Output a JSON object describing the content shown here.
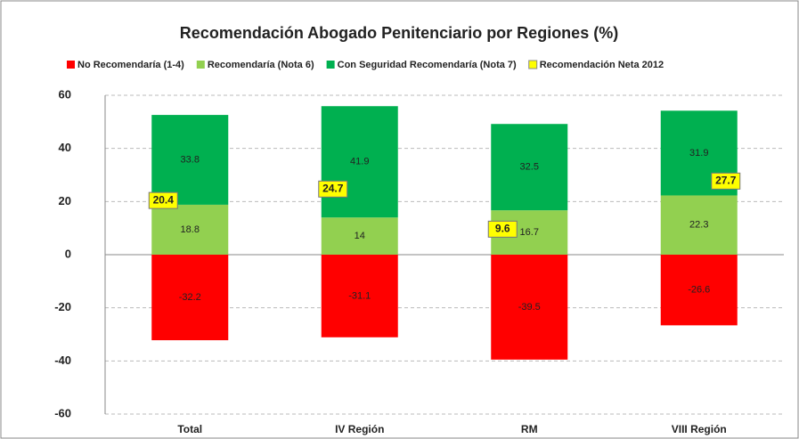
{
  "chart_data": {
    "type": "stacked-bar",
    "title": "Recomendación Abogado Penitenciario por Regiones (%)",
    "categories": [
      "Total",
      "IV Región",
      "RM",
      "VIII Región"
    ],
    "series": [
      {
        "name": "No Recomendaría (1-4)",
        "color": "#ff0000",
        "values": [
          -32.2,
          -31.1,
          -39.5,
          -26.6
        ]
      },
      {
        "name": "Recomendaría (Nota 6)",
        "color": "#92d050",
        "values": [
          18.8,
          14,
          16.7,
          22.3
        ]
      },
      {
        "name": "Con Seguridad Recomendaría (Nota 7)",
        "color": "#00b050",
        "values": [
          33.8,
          41.9,
          32.5,
          31.9
        ]
      },
      {
        "name": "Recomendación Neta 2012",
        "color": "#ffff00",
        "type": "marker",
        "values": [
          20.4,
          24.7,
          9.6,
          27.7
        ]
      }
    ],
    "ylim": [
      -60,
      60
    ],
    "yticks": [
      -60,
      -40,
      -20,
      0,
      20,
      40,
      60
    ],
    "grid": true,
    "legend": "top"
  }
}
